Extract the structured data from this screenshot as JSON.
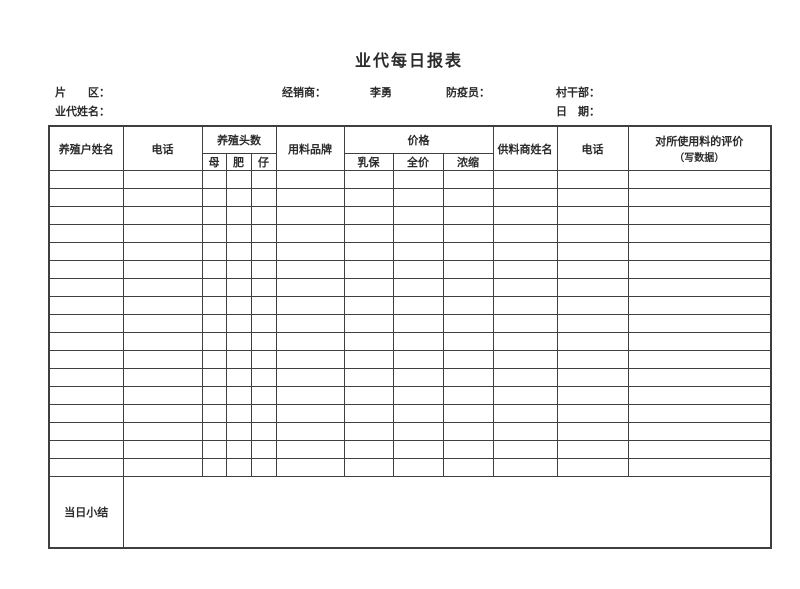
{
  "page": {
    "title": "业代每日报表"
  },
  "info": {
    "district_label": "片　　区：",
    "dealer_label": "经销商：",
    "dealer_value": "李勇",
    "epidemic_officer_label": "防疫员：",
    "village_cadre_label": "村干部：",
    "rep_name_label": "业代姓名：",
    "date_label": "日　期："
  },
  "table": {
    "headers": {
      "farmer_name": "养殖户姓名",
      "phone": "电话",
      "herd_count_group": "养殖头数",
      "sow": "母",
      "fattening": "肥",
      "piglet": "仔",
      "feed_brand": "用料品牌",
      "price_group": "价格",
      "milk_feed": "乳保",
      "full_price_feed": "全价",
      "concentrate_feed": "浓缩",
      "supplier_name": "供料商姓名",
      "supplier_phone": "电话",
      "evaluation_line1": "对所使用料的评价",
      "evaluation_line2": "（写数据）"
    },
    "empty_row_count": 17,
    "columns_per_row": 12,
    "summary_label": "当日小结"
  }
}
